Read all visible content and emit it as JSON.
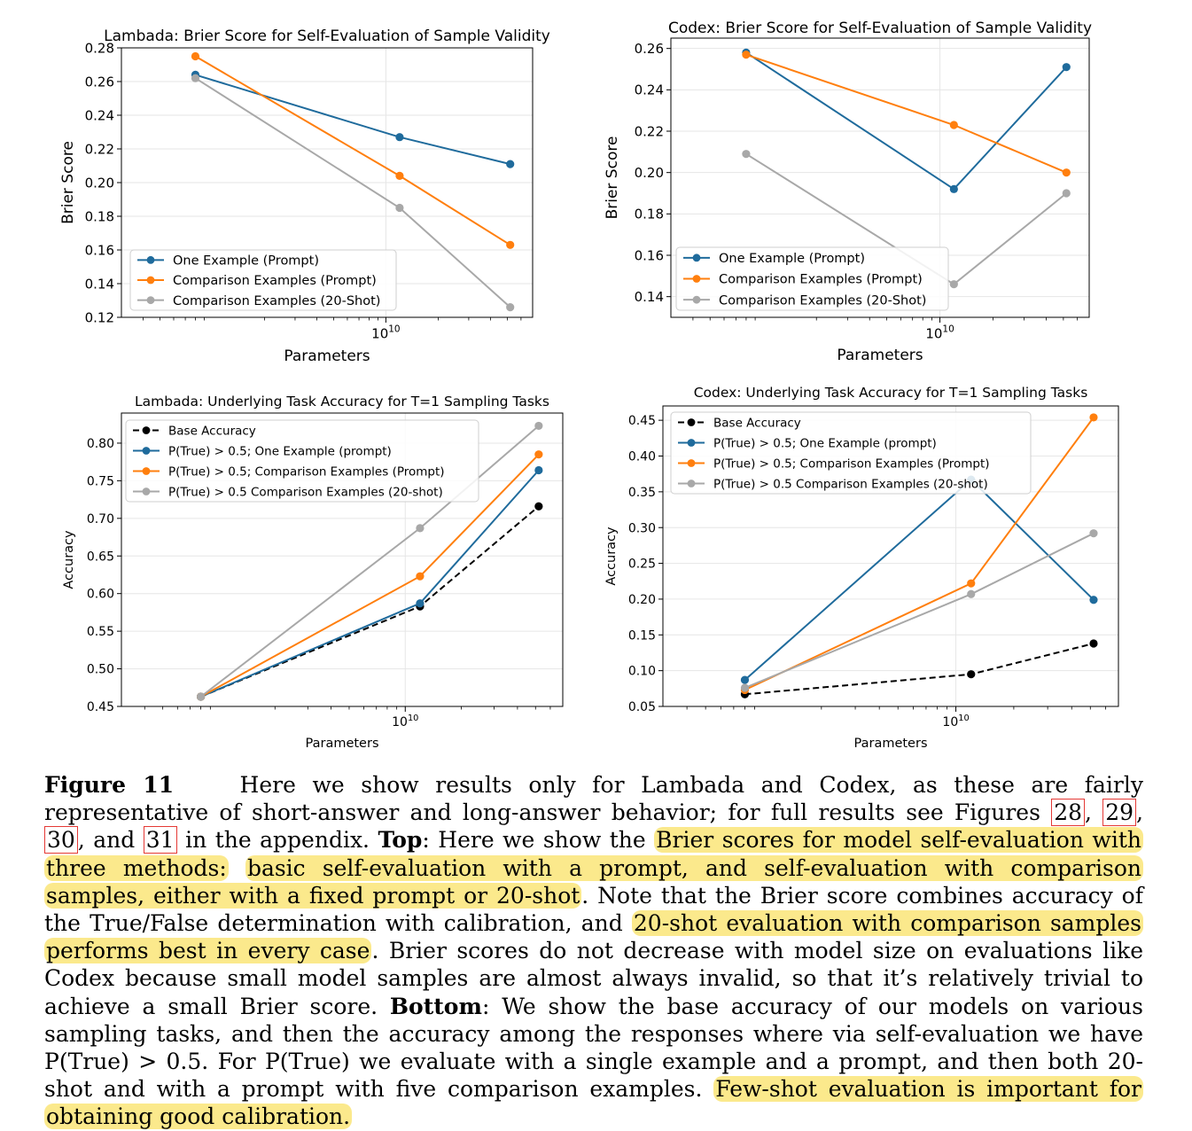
{
  "chart_data": [
    {
      "type": "line",
      "title": "Lambada: Brier Score for Self-Evaluation of Sample Validity",
      "xlabel": "Parameters",
      "ylabel": "Brier Score",
      "xscale": "log",
      "xlim": [
        300000000.0,
        70000000000.0
      ],
      "ylim": [
        0.12,
        0.28
      ],
      "yticks": [
        0.12,
        0.14,
        0.16,
        0.18,
        0.2,
        0.22,
        0.24,
        0.26,
        0.28
      ],
      "ytick_labels": [
        "0.12",
        "0.14",
        "0.16",
        "0.18",
        "0.20",
        "0.22",
        "0.24",
        "0.26",
        "0.28"
      ],
      "xticks": [
        10000000000.0
      ],
      "xtick_labels": [
        "10^10"
      ],
      "legend_position": "lower-left",
      "grid": true,
      "x": [
        800000000.0,
        12000000000.0,
        52000000000.0
      ],
      "series": [
        {
          "name": "One Example (Prompt)",
          "color": "#1f6b9c",
          "style": "solid",
          "values": [
            0.264,
            0.227,
            0.211
          ]
        },
        {
          "name": "Comparison Examples (Prompt)",
          "color": "#ff7f0e",
          "style": "solid",
          "values": [
            0.275,
            0.204,
            0.163
          ]
        },
        {
          "name": "Comparison Examples (20-Shot)",
          "color": "#a8a8a8",
          "style": "solid",
          "values": [
            0.262,
            0.185,
            0.126
          ]
        }
      ]
    },
    {
      "type": "line",
      "title": "Codex: Brier Score for Self-Evaluation of Sample Validity",
      "xlabel": "Parameters",
      "ylabel": "Brier Score",
      "xscale": "log",
      "xlim": [
        300000000.0,
        70000000000.0
      ],
      "ylim": [
        0.13,
        0.265
      ],
      "yticks": [
        0.14,
        0.16,
        0.18,
        0.2,
        0.22,
        0.24,
        0.26
      ],
      "ytick_labels": [
        "0.14",
        "0.16",
        "0.18",
        "0.20",
        "0.22",
        "0.24",
        "0.26"
      ],
      "xticks": [
        10000000000.0
      ],
      "xtick_labels": [
        "10^10"
      ],
      "legend_position": "lower-left",
      "grid": true,
      "x": [
        800000000.0,
        12000000000.0,
        52000000000.0
      ],
      "series": [
        {
          "name": "One Example (Prompt)",
          "color": "#1f6b9c",
          "style": "solid",
          "values": [
            0.258,
            0.192,
            0.251
          ]
        },
        {
          "name": "Comparison Examples (Prompt)",
          "color": "#ff7f0e",
          "style": "solid",
          "values": [
            0.257,
            0.223,
            0.2
          ]
        },
        {
          "name": "Comparison Examples (20-Shot)",
          "color": "#a8a8a8",
          "style": "solid",
          "values": [
            0.209,
            0.146,
            0.19
          ]
        }
      ]
    },
    {
      "type": "line",
      "title": "Lambada: Underlying Task Accuracy for T=1 Sampling Tasks",
      "xlabel": "Parameters",
      "ylabel": "Accuracy",
      "xscale": "log",
      "xlim": [
        300000000.0,
        70000000000.0
      ],
      "ylim": [
        0.45,
        0.84
      ],
      "yticks": [
        0.45,
        0.5,
        0.55,
        0.6,
        0.65,
        0.7,
        0.75,
        0.8
      ],
      "ytick_labels": [
        "0.45",
        "0.50",
        "0.55",
        "0.60",
        "0.65",
        "0.70",
        "0.75",
        "0.80"
      ],
      "xticks": [
        10000000000.0
      ],
      "xtick_labels": [
        "10^10"
      ],
      "legend_position": "upper-left",
      "grid": true,
      "x": [
        800000000.0,
        12000000000.0,
        52000000000.0
      ],
      "series": [
        {
          "name": "Base Accuracy",
          "color": "#000000",
          "style": "dashed",
          "values": [
            0.463,
            0.583,
            0.716
          ]
        },
        {
          "name": "P(True) > 0.5; One Example (prompt)",
          "color": "#1f6b9c",
          "style": "solid",
          "values": [
            0.463,
            0.587,
            0.764
          ]
        },
        {
          "name": "P(True) > 0.5; Comparison Examples (Prompt)",
          "color": "#ff7f0e",
          "style": "solid",
          "values": [
            0.463,
            0.623,
            0.785
          ]
        },
        {
          "name": "P(True) > 0.5 Comparison Examples (20-shot)",
          "color": "#a8a8a8",
          "style": "solid",
          "values": [
            0.463,
            0.687,
            0.823
          ]
        }
      ]
    },
    {
      "type": "line",
      "title": "Codex: Underlying Task Accuracy for T=1 Sampling Tasks",
      "xlabel": "Parameters",
      "ylabel": "Accuracy",
      "xscale": "log",
      "xlim": [
        300000000.0,
        70000000000.0
      ],
      "ylim": [
        0.05,
        0.47
      ],
      "yticks": [
        0.05,
        0.1,
        0.15,
        0.2,
        0.25,
        0.3,
        0.35,
        0.4,
        0.45
      ],
      "ytick_labels": [
        "0.05",
        "0.10",
        "0.15",
        "0.20",
        "0.25",
        "0.30",
        "0.35",
        "0.40",
        "0.45"
      ],
      "xticks": [
        10000000000.0
      ],
      "xtick_labels": [
        "10^10"
      ],
      "legend_position": "upper-left",
      "grid": true,
      "x": [
        800000000.0,
        12000000000.0,
        52000000000.0
      ],
      "series": [
        {
          "name": "Base Accuracy",
          "color": "#000000",
          "style": "dashed",
          "values": [
            0.067,
            0.095,
            0.138
          ]
        },
        {
          "name": "P(True) > 0.5; One Example (prompt)",
          "color": "#1f6b9c",
          "style": "solid",
          "values": [
            0.087,
            0.367,
            0.199
          ]
        },
        {
          "name": "P(True) > 0.5; Comparison Examples (Prompt)",
          "color": "#ff7f0e",
          "style": "solid",
          "values": [
            0.073,
            0.222,
            0.454
          ]
        },
        {
          "name": "P(True) > 0.5 Comparison Examples (20-shot)",
          "color": "#a8a8a8",
          "style": "solid",
          "values": [
            0.076,
            0.207,
            0.292
          ]
        }
      ]
    }
  ],
  "caption": {
    "label": "Figure 11",
    "s1": "Here we show results only for Lambada and Codex, as these are fairly representative of short-answer and long-answer behavior; for full results see Figures ",
    "ref1": "28",
    "sep1": ", ",
    "ref2": "29",
    "sep2": ", ",
    "ref3": "30",
    "sep3": ", and ",
    "ref4": "31",
    "s2": " in the appendix. ",
    "top": "Top",
    "s3": ": Here we show the ",
    "h1": "Brier scores for model self-evaluation with three methods:",
    "s4": " ",
    "h2": "basic self-evaluation with a prompt, and self-evaluation with comparison samples, either with a fixed prompt or 20-shot",
    "s5": ". Note that the Brier score combines accuracy of the True/False determination with calibration, and ",
    "h3": "20-shot evaluation with comparison samples performs best in every case",
    "s6": ". Brier scores do not decrease with model size on evaluations like Codex because small model samples are almost always invalid, so that it’s relatively trivial to achieve a small Brier score. ",
    "bottom": "Bottom",
    "s7": ": We show the base accuracy of our models on various sampling tasks, and then the accuracy among the responses where via self-evaluation we have P(True) > 0.5. For P(True) we evaluate with a single example and a prompt, and then both 20-shot and with a prompt with five comparison examples. ",
    "h4": "Few-shot evaluation is important for obtaining good calibration."
  }
}
